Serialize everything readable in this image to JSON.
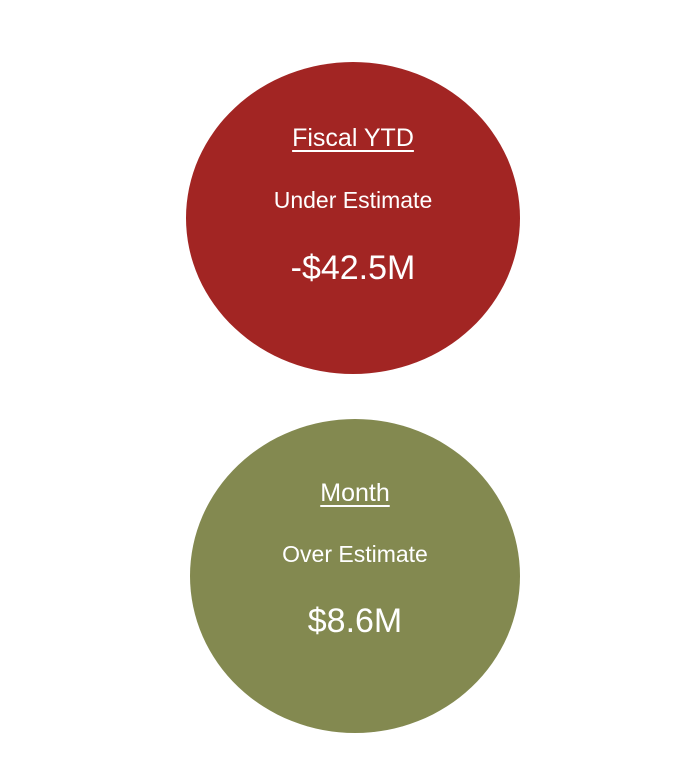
{
  "cards": [
    {
      "title": "Fiscal YTD",
      "status": "Under Estimate",
      "value": "-$42.5M",
      "color": "#A22523"
    },
    {
      "title": "Month",
      "status": "Over Estimate",
      "value": "$8.6M",
      "color": "#838950"
    }
  ]
}
